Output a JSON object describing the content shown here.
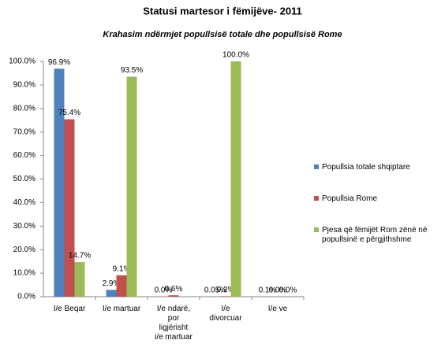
{
  "chart_data": {
    "type": "bar",
    "title": "Statusi martesor i fëmijëve- 2011",
    "subtitle": "Krahasim ndërmjet popullsisë totale dhe popullsisë Rome",
    "categories": [
      "I/e Beqar",
      "I/e martuar",
      "I/e ndarë, por ligjërisht i/e martuar",
      "I/e divorcuar",
      "I/e ve"
    ],
    "series": [
      {
        "name": "Popullsia totale shqiptare",
        "color": "#4f81bd",
        "values": [
          96.9,
          2.9,
          0.0,
          0.05,
          0.1
        ],
        "value_labels": [
          "96.9%",
          "2.9%",
          "0.0%",
          "0.05%",
          "0.1%"
        ]
      },
      {
        "name": "Popullsia Rome",
        "color": "#c0504d",
        "values": [
          75.4,
          9.1,
          0.6,
          0.2,
          0.0
        ],
        "value_labels": [
          "75.4%",
          "9.1%",
          "0.6%",
          "0.2%",
          "0.0%"
        ]
      },
      {
        "name": "Pjesa që fëmijët Rom zënë në popullsinë e përgjithshme",
        "color": "#9bbb59",
        "values": [
          14.7,
          93.5,
          null,
          100.0,
          0.0
        ],
        "value_labels": [
          "14.7%",
          "93.5%",
          null,
          "100.0%",
          "0.0%"
        ]
      }
    ],
    "ylim": [
      0,
      100
    ],
    "yticks": [
      {
        "value": 0,
        "label": "0.0%"
      },
      {
        "value": 10,
        "label": "10.0%"
      },
      {
        "value": 20,
        "label": "20.0%"
      },
      {
        "value": 30,
        "label": "30.0%"
      },
      {
        "value": 40,
        "label": "40.0%"
      },
      {
        "value": 50,
        "label": "50.0%"
      },
      {
        "value": 60,
        "label": "60.0%"
      },
      {
        "value": 70,
        "label": "70.0%"
      },
      {
        "value": 80,
        "label": "80.0%"
      },
      {
        "value": 90,
        "label": "90.0%"
      },
      {
        "value": 100,
        "label": "100.0%"
      }
    ],
    "grid": false,
    "legend": "right"
  }
}
